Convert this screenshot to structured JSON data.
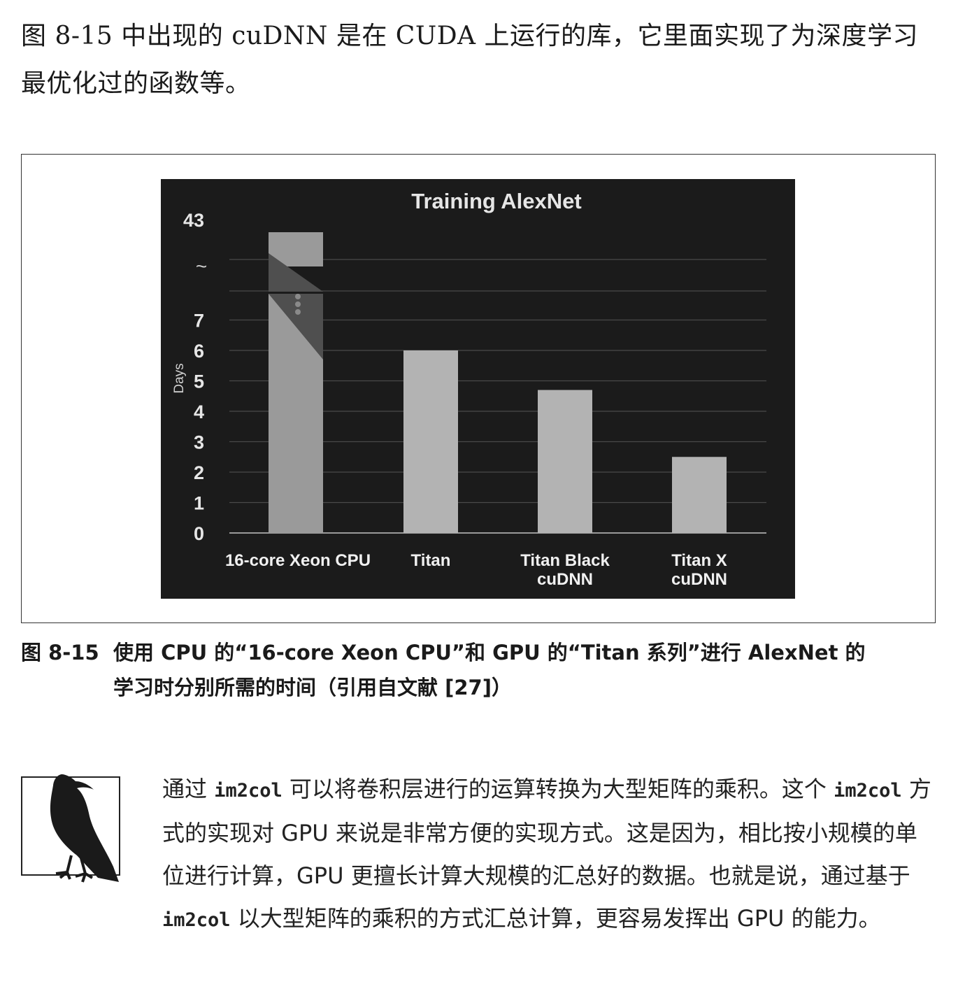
{
  "intro": {
    "text": "图 8-15 中出现的 cuDNN 是在 CUDA 上运行的库，它里面实现了为深度学习最优化过的函数等。"
  },
  "figure": {
    "number": "图 8-15",
    "caption_line1": "使用 CPU 的“16-core Xeon CPU”和 GPU 的“Titan 系列”进行 AlexNet 的",
    "caption_line2": "学习时分别所需的时间（引用自文献 [27]）"
  },
  "chart_data": {
    "type": "bar",
    "title": "Training AlexNet",
    "ylabel": "Days",
    "xlabel": "",
    "axis_break": {
      "between": [
        7,
        43
      ],
      "symbol": "~"
    },
    "yticks": [
      "0",
      "1",
      "2",
      "3",
      "4",
      "5",
      "6",
      "7",
      "43"
    ],
    "ylim": [
      0,
      43
    ],
    "categories": [
      [
        "16-core Xeon CPU"
      ],
      [
        "Titan"
      ],
      [
        "Titan Black",
        "cuDNN"
      ],
      [
        "Titan X",
        "cuDNN"
      ]
    ],
    "values": [
      43,
      6,
      4.7,
      2.5
    ],
    "colors": {
      "background": "#1b1b1b",
      "bar": "#b3b3b3",
      "cpu_bar": "#9a9a9a",
      "grid": "#4a4a4a"
    }
  },
  "note": {
    "p1": "通过 ",
    "c1": "im2col",
    "p2": " 可以将卷积层进行的运算转换为大型矩阵的乘积。这个 ",
    "c2": "im2col",
    "p3": " 方式的实现对 GPU 来说是非常方便的实现方式。这是因为，相比按小规模的单位进行计算，GPU 更擅长计算大规模的汇总好的数据。也就是说，通过基于 ",
    "c3": "im2col",
    "p4": " 以大型矩阵的乘积的方式汇总计算，更容易发挥出 GPU 的能力。"
  }
}
